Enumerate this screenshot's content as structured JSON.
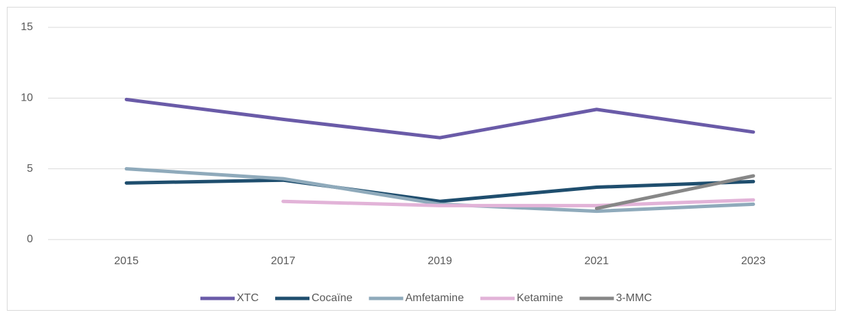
{
  "chart_data": {
    "type": "line",
    "categories": [
      "2015",
      "2017",
      "2019",
      "2021",
      "2023"
    ],
    "series": [
      {
        "name": "XTC",
        "color": "#6a5ba8",
        "values": [
          9.9,
          8.5,
          7.2,
          9.2,
          7.6
        ]
      },
      {
        "name": "Cocaïne",
        "color": "#1f4e6e",
        "values": [
          4.0,
          4.2,
          2.7,
          3.7,
          4.1
        ]
      },
      {
        "name": "Amfetamine",
        "color": "#8faabb",
        "values": [
          5.0,
          4.3,
          2.5,
          2.0,
          2.5
        ]
      },
      {
        "name": "Ketamine",
        "color": "#e2b3d8",
        "values": [
          null,
          2.7,
          2.4,
          2.4,
          2.8
        ]
      },
      {
        "name": "3-MMC",
        "color": "#878787",
        "values": [
          null,
          null,
          null,
          2.2,
          4.5
        ]
      }
    ],
    "ylim": [
      0,
      15
    ],
    "yticks": [
      0,
      5,
      10,
      15
    ],
    "grid": true,
    "legend": "bottom"
  }
}
